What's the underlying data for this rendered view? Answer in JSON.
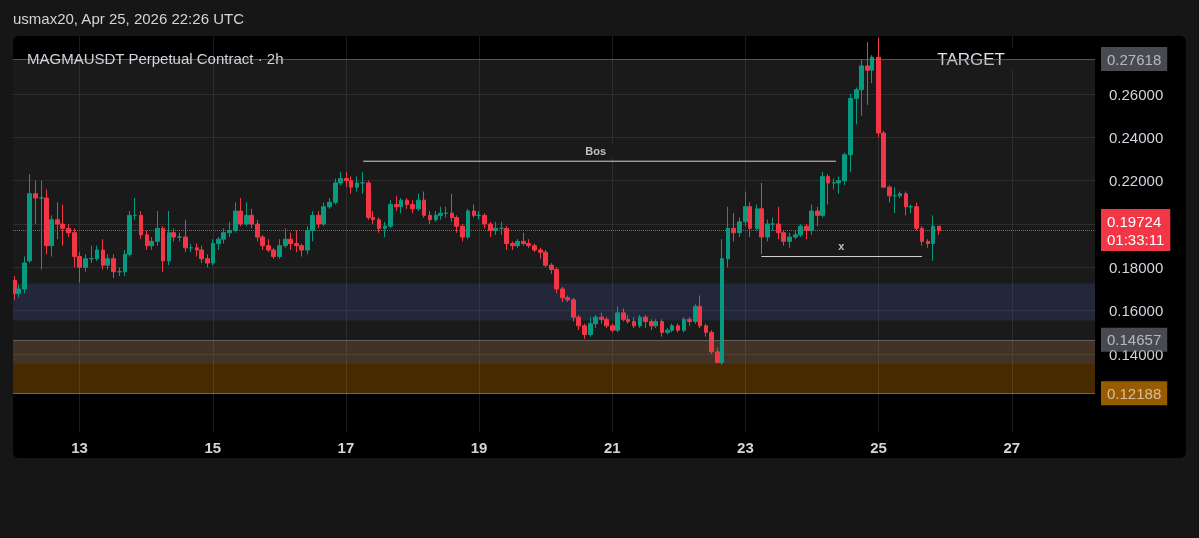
{
  "chart_data": {
    "type": "candlestick",
    "title": "MAGMAUSDT Perpetual Contract · 2h",
    "annotations": [
      "usmax20, Apr 25, 2026 22:26 UTC",
      "01:33:11",
      {
        "text": "TARGET",
        "x": 26.39,
        "y": 0.27618
      },
      {
        "text": "Bos",
        "x": 20.75,
        "y": 0.229
      },
      {
        "text": "x",
        "x": 24.44,
        "y": 0.185
      }
    ],
    "xlim": [
      12,
      28.25
    ],
    "xticks": [
      13,
      15,
      17,
      19,
      21,
      23,
      25,
      27
    ],
    "ylim": [
      0.104,
      0.2868
    ],
    "yticks": [
      {
        "value": 0.14,
        "label": "0.14000"
      },
      {
        "value": 0.16,
        "label": "0.16000"
      },
      {
        "value": 0.18,
        "label": "0.18000"
      },
      {
        "value": 0.2,
        "label": null
      },
      {
        "value": 0.22,
        "label": "0.22000"
      },
      {
        "value": 0.24,
        "label": "0.24000"
      },
      {
        "value": 0.26,
        "label": "0.26000"
      }
    ],
    "grid": true,
    "marker": "none",
    "series": [
      {
        "colors": [
          "#f23645",
          "#089981",
          "#089981",
          "#089981",
          "#f23645",
          "#089981",
          "#f23645",
          "#089981",
          "#f23645",
          "#f23645",
          "#f23645",
          "#f23645",
          "#f23645",
          "#089981",
          "#089981",
          "#089981",
          "#f23645",
          "#089981",
          "#f23645",
          "#089981",
          "#089981",
          "#089981",
          "#089981",
          "#f23645",
          "#f23645",
          "#089981",
          "#089981",
          "#f23645",
          "#089981",
          "#f23645",
          "#089981",
          "#f23645",
          "#089981",
          "#f23645",
          "#f23645",
          "#f23645",
          "#089981",
          "#089981",
          "#089981",
          "#089981",
          "#089981",
          "#f23645",
          "#089981",
          "#f23645",
          "#f23645",
          "#f23645",
          "#f23645",
          "#f23645",
          "#089981",
          "#089981",
          "#f23645",
          "#f23645",
          "#f23645",
          "#089981",
          "#089981",
          "#f23645",
          "#089981",
          "#089981",
          "#089981",
          "#089981",
          "#f23645",
          "#f23645",
          "#089981",
          "#089981",
          "#f23645",
          "#f23645",
          "#f23645",
          "#089981",
          "#089981",
          "#f23645",
          "#089981",
          "#f23645",
          "#f23645",
          "#089981",
          "#f23645",
          "#f23645",
          "#089981",
          "#089981",
          "#089981",
          "#f23645",
          "#f23645",
          "#f23645",
          "#089981",
          "#f23645",
          "#089981",
          "#f23645",
          "#f23645",
          "#089981",
          "#089981",
          "#f23645",
          "#f23645",
          "#089981",
          "#f23645",
          "#f23645",
          "#f23645",
          "#f23645",
          "#f23645",
          "#f23645",
          "#f23645",
          "#f23645",
          "#f23645",
          "#f23645",
          "#f23645",
          "#f23645",
          "#089981",
          "#089981",
          "#f23645",
          "#f23645",
          "#f23645",
          "#089981",
          "#f23645",
          "#f23645",
          "#f23645",
          "#089981",
          "#f23645",
          "#f23645",
          "#089981",
          "#f23645",
          "#089981",
          "#089981",
          "#f23645",
          "#089981",
          "#f23645",
          "#089981",
          "#f23645",
          "#f23645",
          "#f23645",
          "#f23645",
          "#089981",
          "#089981",
          "#f23645",
          "#089981",
          "#089981",
          "#f23645",
          "#089981",
          "#f23645",
          "#089981",
          "#089981",
          "#f23645",
          "#f23645",
          "#089981",
          "#089981",
          "#089981",
          "#f23645",
          "#089981",
          "#f23645",
          "#089981",
          "#f23645",
          "#089981",
          "#089981",
          "#089981",
          "#089981",
          "#089981",
          "#089981",
          "#f23645",
          "#089981",
          "#f23645",
          "#f23645",
          "#f23645",
          "#089981",
          "#089981",
          "#f23645",
          "#089981",
          "#f23645",
          "#f23645",
          "#f23645",
          "#089981",
          "#f23645"
        ],
        "x": [
          12.02,
          12.08,
          12.17,
          12.25,
          12.34,
          12.43,
          12.5,
          12.58,
          12.67,
          12.74,
          12.83,
          12.92,
          13,
          13.09,
          13.18,
          13.26,
          13.35,
          13.42,
          13.51,
          13.6,
          13.68,
          13.75,
          13.83,
          13.92,
          14.01,
          14.08,
          14.17,
          14.25,
          14.34,
          14.41,
          14.5,
          14.59,
          14.67,
          14.76,
          14.83,
          14.92,
          15,
          15.09,
          15.16,
          15.25,
          15.34,
          15.42,
          15.51,
          15.58,
          15.67,
          15.75,
          15.84,
          15.91,
          16,
          16.09,
          16.17,
          16.26,
          16.33,
          16.42,
          16.5,
          16.59,
          16.66,
          16.75,
          16.84,
          16.92,
          17.01,
          17.08,
          17.17,
          17.25,
          17.34,
          17.41,
          17.5,
          17.59,
          17.67,
          17.76,
          17.83,
          17.92,
          18,
          18.09,
          18.17,
          18.26,
          18.35,
          18.42,
          18.5,
          18.59,
          18.66,
          18.75,
          18.83,
          18.92,
          18.99,
          19.08,
          19.17,
          19.25,
          19.34,
          19.41,
          19.5,
          19.58,
          19.67,
          19.74,
          19.83,
          19.92,
          20,
          20.09,
          20.16,
          20.25,
          20.33,
          20.42,
          20.49,
          20.58,
          20.67,
          20.75,
          20.84,
          20.91,
          21,
          21.08,
          21.17,
          21.24,
          21.33,
          21.42,
          21.5,
          21.59,
          21.66,
          21.75,
          21.83,
          21.9,
          21.99,
          22.08,
          22.16,
          22.25,
          22.32,
          22.41,
          22.49,
          22.58,
          22.65,
          22.74,
          22.82,
          22.91,
          23,
          23.07,
          23.17,
          23.24,
          23.33,
          23.41,
          23.5,
          23.57,
          23.66,
          23.75,
          23.83,
          23.92,
          23.99,
          24.08,
          24.16,
          24.24,
          24.33,
          24.4,
          24.49,
          24.58,
          24.67,
          24.74,
          24.83,
          24.9,
          25,
          25.07,
          25.16,
          25.25,
          25.32,
          25.41,
          25.48,
          25.57,
          25.65,
          25.74,
          25.82,
          25.91
        ],
        "ohlc": [
          [
            0.174,
            0.176,
            0.165,
            0.168
          ],
          [
            0.168,
            0.172,
            0.166,
            0.17
          ],
          [
            0.17,
            0.185,
            0.168,
            0.182
          ],
          [
            0.183,
            0.223,
            0.182,
            0.214
          ],
          [
            0.214,
            0.22,
            0.2,
            0.212
          ],
          [
            0.212,
            0.22,
            0.179,
            0.212
          ],
          [
            0.212,
            0.216,
            0.186,
            0.19
          ],
          [
            0.19,
            0.204,
            0.185,
            0.202
          ],
          [
            0.202,
            0.21,
            0.193,
            0.2
          ],
          [
            0.2,
            0.209,
            0.19,
            0.198
          ],
          [
            0.198,
            0.2,
            0.194,
            0.196
          ],
          [
            0.196,
            0.198,
            0.18,
            0.185
          ],
          [
            0.185,
            0.187,
            0.173,
            0.18
          ],
          [
            0.18,
            0.186,
            0.178,
            0.184
          ],
          [
            0.184,
            0.19,
            0.182,
            0.184
          ],
          [
            0.184,
            0.19,
            0.183,
            0.188
          ],
          [
            0.188,
            0.193,
            0.179,
            0.181
          ],
          [
            0.181,
            0.186,
            0.179,
            0.184
          ],
          [
            0.184,
            0.186,
            0.175,
            0.178
          ],
          [
            0.178,
            0.18,
            0.176,
            0.178
          ],
          [
            0.178,
            0.188,
            0.176,
            0.186
          ],
          [
            0.186,
            0.206,
            0.185,
            0.204
          ],
          [
            0.204,
            0.212,
            0.202,
            0.204
          ],
          [
            0.204,
            0.206,
            0.193,
            0.195
          ],
          [
            0.195,
            0.197,
            0.188,
            0.19
          ],
          [
            0.19,
            0.194,
            0.188,
            0.192
          ],
          [
            0.192,
            0.206,
            0.19,
            0.198
          ],
          [
            0.198,
            0.199,
            0.178,
            0.183
          ],
          [
            0.183,
            0.206,
            0.181,
            0.196
          ],
          [
            0.196,
            0.198,
            0.192,
            0.194
          ],
          [
            0.194,
            0.196,
            0.192,
            0.194
          ],
          [
            0.194,
            0.202,
            0.187,
            0.189
          ],
          [
            0.189,
            0.191,
            0.187,
            0.189
          ],
          [
            0.189,
            0.191,
            0.185,
            0.188
          ],
          [
            0.188,
            0.19,
            0.182,
            0.184
          ],
          [
            0.184,
            0.186,
            0.18,
            0.182
          ],
          [
            0.182,
            0.193,
            0.181,
            0.191
          ],
          [
            0.191,
            0.194,
            0.188,
            0.193
          ],
          [
            0.193,
            0.198,
            0.191,
            0.196
          ],
          [
            0.196,
            0.201,
            0.194,
            0.197
          ],
          [
            0.197,
            0.21,
            0.196,
            0.206
          ],
          [
            0.206,
            0.212,
            0.199,
            0.2
          ],
          [
            0.2,
            0.21,
            0.199,
            0.204
          ],
          [
            0.204,
            0.207,
            0.198,
            0.2
          ],
          [
            0.2,
            0.202,
            0.192,
            0.194
          ],
          [
            0.194,
            0.195,
            0.188,
            0.19
          ],
          [
            0.19,
            0.193,
            0.187,
            0.188
          ],
          [
            0.188,
            0.189,
            0.184,
            0.185
          ],
          [
            0.185,
            0.193,
            0.184,
            0.19
          ],
          [
            0.19,
            0.198,
            0.189,
            0.193
          ],
          [
            0.193,
            0.196,
            0.188,
            0.191
          ],
          [
            0.191,
            0.197,
            0.187,
            0.19
          ],
          [
            0.19,
            0.191,
            0.185,
            0.188
          ],
          [
            0.188,
            0.199,
            0.186,
            0.197
          ],
          [
            0.197,
            0.206,
            0.192,
            0.204
          ],
          [
            0.204,
            0.206,
            0.198,
            0.2
          ],
          [
            0.2,
            0.21,
            0.199,
            0.208
          ],
          [
            0.208,
            0.212,
            0.207,
            0.21
          ],
          [
            0.21,
            0.221,
            0.209,
            0.219
          ],
          [
            0.219,
            0.224,
            0.218,
            0.221
          ],
          [
            0.221,
            0.224,
            0.217,
            0.22
          ],
          [
            0.22,
            0.222,
            0.214,
            0.217
          ],
          [
            0.217,
            0.222,
            0.215,
            0.219
          ],
          [
            0.219,
            0.224,
            0.214,
            0.219
          ],
          [
            0.219,
            0.22,
            0.202,
            0.203
          ],
          [
            0.203,
            0.206,
            0.2,
            0.202
          ],
          [
            0.202,
            0.203,
            0.196,
            0.198
          ],
          [
            0.198,
            0.201,
            0.194,
            0.199
          ],
          [
            0.199,
            0.211,
            0.198,
            0.209
          ],
          [
            0.209,
            0.213,
            0.206,
            0.208
          ],
          [
            0.208,
            0.212,
            0.205,
            0.211
          ],
          [
            0.211,
            0.212,
            0.207,
            0.209
          ],
          [
            0.209,
            0.211,
            0.205,
            0.207
          ],
          [
            0.207,
            0.214,
            0.206,
            0.211
          ],
          [
            0.211,
            0.215,
            0.203,
            0.204
          ],
          [
            0.204,
            0.206,
            0.2,
            0.202
          ],
          [
            0.202,
            0.206,
            0.201,
            0.204
          ],
          [
            0.204,
            0.208,
            0.202,
            0.205
          ],
          [
            0.205,
            0.208,
            0.203,
            0.205
          ],
          [
            0.205,
            0.214,
            0.201,
            0.203
          ],
          [
            0.203,
            0.204,
            0.196,
            0.199
          ],
          [
            0.199,
            0.2,
            0.192,
            0.194
          ],
          [
            0.194,
            0.207,
            0.193,
            0.206
          ],
          [
            0.206,
            0.209,
            0.203,
            0.204
          ],
          [
            0.204,
            0.206,
            0.202,
            0.204
          ],
          [
            0.204,
            0.205,
            0.198,
            0.2
          ],
          [
            0.2,
            0.201,
            0.194,
            0.197
          ],
          [
            0.197,
            0.201,
            0.195,
            0.198
          ],
          [
            0.198,
            0.201,
            0.195,
            0.198
          ],
          [
            0.198,
            0.199,
            0.188,
            0.191
          ],
          [
            0.191,
            0.192,
            0.188,
            0.19
          ],
          [
            0.19,
            0.193,
            0.189,
            0.192
          ],
          [
            0.192,
            0.196,
            0.19,
            0.191
          ],
          [
            0.191,
            0.193,
            0.189,
            0.19
          ],
          [
            0.19,
            0.191,
            0.187,
            0.188
          ],
          [
            0.188,
            0.189,
            0.184,
            0.187
          ],
          [
            0.187,
            0.188,
            0.18,
            0.181
          ],
          [
            0.181,
            0.182,
            0.177,
            0.179
          ],
          [
            0.179,
            0.18,
            0.168,
            0.17
          ],
          [
            0.17,
            0.171,
            0.164,
            0.166
          ],
          [
            0.166,
            0.167,
            0.164,
            0.165
          ],
          [
            0.165,
            0.166,
            0.155,
            0.157
          ],
          [
            0.157,
            0.158,
            0.151,
            0.153
          ],
          [
            0.153,
            0.154,
            0.147,
            0.149
          ],
          [
            0.149,
            0.157,
            0.148,
            0.154
          ],
          [
            0.154,
            0.158,
            0.152,
            0.157
          ],
          [
            0.157,
            0.159,
            0.154,
            0.156
          ],
          [
            0.156,
            0.157,
            0.152,
            0.153
          ],
          [
            0.153,
            0.154,
            0.15,
            0.151
          ],
          [
            0.151,
            0.162,
            0.15,
            0.159
          ],
          [
            0.159,
            0.161,
            0.155,
            0.156
          ],
          [
            0.156,
            0.158,
            0.154,
            0.155
          ],
          [
            0.155,
            0.157,
            0.152,
            0.153
          ],
          [
            0.153,
            0.158,
            0.152,
            0.157
          ],
          [
            0.157,
            0.158,
            0.152,
            0.155
          ],
          [
            0.155,
            0.156,
            0.151,
            0.153
          ],
          [
            0.153,
            0.156,
            0.152,
            0.155
          ],
          [
            0.155,
            0.156,
            0.148,
            0.15
          ],
          [
            0.15,
            0.152,
            0.149,
            0.151
          ],
          [
            0.151,
            0.154,
            0.15,
            0.153
          ],
          [
            0.153,
            0.154,
            0.15,
            0.151
          ],
          [
            0.151,
            0.157,
            0.15,
            0.156
          ],
          [
            0.156,
            0.157,
            0.153,
            0.155
          ],
          [
            0.155,
            0.163,
            0.154,
            0.162
          ],
          [
            0.162,
            0.167,
            0.152,
            0.153
          ],
          [
            0.153,
            0.154,
            0.148,
            0.15
          ],
          [
            0.15,
            0.151,
            0.14,
            0.141
          ],
          [
            0.141,
            0.143,
            0.136,
            0.136
          ],
          [
            0.136,
            0.193,
            0.135,
            0.184
          ],
          [
            0.184,
            0.208,
            0.18,
            0.198
          ],
          [
            0.198,
            0.205,
            0.192,
            0.196
          ],
          [
            0.196,
            0.203,
            0.194,
            0.201
          ],
          [
            0.201,
            0.215,
            0.199,
            0.208
          ],
          [
            0.208,
            0.21,
            0.194,
            0.198
          ],
          [
            0.198,
            0.209,
            0.197,
            0.207
          ],
          [
            0.207,
            0.219,
            0.186,
            0.194
          ],
          [
            0.194,
            0.202,
            0.192,
            0.2
          ],
          [
            0.2,
            0.203,
            0.197,
            0.2
          ],
          [
            0.2,
            0.208,
            0.193,
            0.196
          ],
          [
            0.196,
            0.197,
            0.19,
            0.192
          ],
          [
            0.192,
            0.196,
            0.189,
            0.194
          ],
          [
            0.194,
            0.197,
            0.193,
            0.195
          ],
          [
            0.195,
            0.2,
            0.194,
            0.199
          ],
          [
            0.199,
            0.2,
            0.193,
            0.197
          ],
          [
            0.197,
            0.209,
            0.195,
            0.206
          ],
          [
            0.206,
            0.208,
            0.199,
            0.204
          ],
          [
            0.204,
            0.224,
            0.203,
            0.222
          ],
          [
            0.222,
            0.223,
            0.209,
            0.219
          ],
          [
            0.219,
            0.221,
            0.216,
            0.219
          ],
          [
            0.219,
            0.222,
            0.214,
            0.22
          ],
          [
            0.22,
            0.233,
            0.218,
            0.232
          ],
          [
            0.232,
            0.26,
            0.224,
            0.258
          ],
          [
            0.258,
            0.263,
            0.246,
            0.262
          ],
          [
            0.262,
            0.276,
            0.25,
            0.273
          ],
          [
            0.273,
            0.284,
            0.255,
            0.271
          ],
          [
            0.271,
            0.278,
            0.265,
            0.277
          ],
          [
            0.277,
            0.286,
            0.24,
            0.242
          ],
          [
            0.242,
            0.243,
            0.217,
            0.217
          ],
          [
            0.217,
            0.218,
            0.21,
            0.213
          ],
          [
            0.213,
            0.217,
            0.205,
            0.213
          ],
          [
            0.213,
            0.215,
            0.212,
            0.214
          ],
          [
            0.214,
            0.215,
            0.204,
            0.208
          ],
          [
            0.208,
            0.209,
            0.205,
            0.208
          ],
          [
            0.208,
            0.21,
            0.197,
            0.198
          ],
          [
            0.198,
            0.199,
            0.19,
            0.192
          ],
          [
            0.192,
            0.193,
            0.189,
            0.191
          ],
          [
            0.191,
            0.204,
            0.183,
            0.199
          ],
          [
            0.199,
            0.199,
            0.195,
            0.197
          ]
        ]
      },
      {
        "type": "line",
        "color": "#d1d4dc",
        "x": [
          17.26,
          24.36
        ],
        "values": [
          0.229,
          0.229
        ]
      },
      {
        "type": "line",
        "color": "#d1d4dc",
        "x": [
          23.24,
          25.65
        ],
        "values": [
          0.185,
          0.185
        ]
      }
    ],
    "ref_lines": [
      {
        "axis": "y",
        "value": 0.19724,
        "label": "0.19724",
        "color": "#f23645",
        "line_style": "dotted"
      },
      {
        "axis": "y",
        "value": 0.27618,
        "label": "0.27618",
        "color": "#787b86",
        "line_style": "solid"
      },
      {
        "axis": "y",
        "value": 0.14657,
        "label": "0.14657",
        "color": "#787b86",
        "line_style": "solid"
      },
      {
        "axis": "y",
        "value": 0.12188,
        "label": "0.12188",
        "color": "#ff9800",
        "line_style": "solid"
      }
    ],
    "bands": [
      {
        "axis": "y",
        "from": 0.14657,
        "to": 0.27618,
        "color": "#5d5d5d"
      },
      {
        "axis": "y",
        "from": 0.12188,
        "to": 0.14657,
        "color": "#ff9800"
      },
      {
        "axis": "y",
        "from": 0.1555,
        "to": 0.1725,
        "color": "#3b4a8c"
      },
      {
        "axis": "y",
        "from": 0.1355,
        "to": 0.1465,
        "color": "#3b4a8c"
      }
    ]
  }
}
